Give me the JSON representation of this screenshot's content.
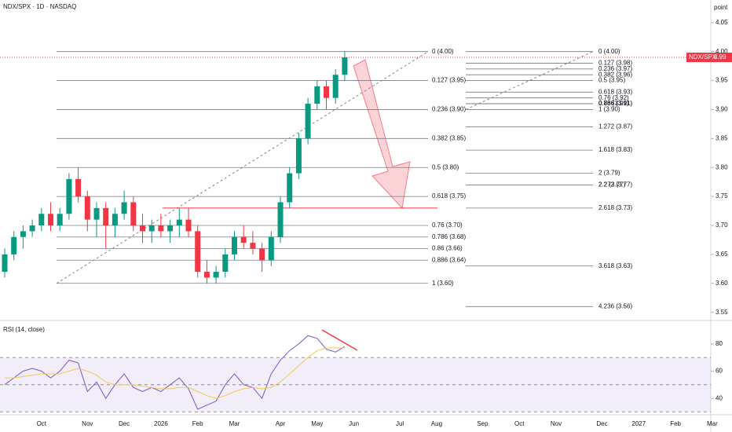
{
  "chart_data": [
    {
      "type": "candlestick",
      "title": "NDX/SPX · 1D · NASDAQ",
      "y_axis_label": "point",
      "categories": [
        null,
        null,
        null,
        null,
        "Oct",
        null,
        null,
        null,
        null,
        "Nov",
        null,
        null,
        null,
        "Dec",
        null,
        null,
        null,
        "2026",
        null,
        null,
        null,
        "Feb",
        null,
        null,
        null,
        "Mar",
        null,
        null,
        null,
        null,
        "Apr",
        null,
        null,
        null,
        "May",
        null,
        null,
        null,
        "Jun",
        null,
        null,
        null,
        null,
        "Jul",
        null,
        null,
        null,
        "Aug",
        null,
        null,
        null,
        null,
        "Sep",
        null,
        null,
        null,
        "Oct",
        null,
        null,
        null,
        "Nov",
        null,
        null,
        null,
        null,
        "Dec",
        null,
        null,
        null,
        "2027",
        null,
        null,
        null,
        "Feb",
        null,
        null,
        null,
        "Mar"
      ],
      "open": [
        3.62,
        3.65,
        3.68,
        3.69,
        3.7,
        3.72,
        3.7,
        3.72,
        3.78,
        3.75,
        3.71,
        3.73,
        3.7,
        3.72,
        3.74,
        3.7,
        3.69,
        3.7,
        3.69,
        3.7,
        3.71,
        3.69,
        3.62,
        3.61,
        3.62,
        3.65,
        3.68,
        3.67,
        3.66,
        3.64,
        3.68,
        3.74,
        3.79,
        3.85,
        3.91,
        3.94,
        3.92,
        3.96,
        null,
        null,
        null,
        null,
        null,
        null,
        null,
        null,
        null,
        null,
        null,
        null,
        null,
        null,
        null,
        null,
        null,
        null,
        null,
        null,
        null,
        null,
        null,
        null,
        null,
        null,
        null,
        null,
        null,
        null,
        null,
        null,
        null,
        null,
        null,
        null,
        null,
        null,
        null,
        null
      ],
      "high": [
        3.66,
        3.69,
        3.7,
        3.71,
        3.73,
        3.74,
        3.73,
        3.79,
        3.8,
        3.76,
        3.74,
        3.74,
        3.73,
        3.76,
        3.75,
        3.72,
        3.71,
        3.72,
        3.71,
        3.73,
        3.73,
        3.7,
        3.64,
        3.63,
        3.66,
        3.69,
        3.7,
        3.69,
        3.67,
        3.69,
        3.75,
        3.8,
        3.86,
        3.92,
        3.95,
        3.95,
        3.97,
        4.0,
        null,
        null,
        null,
        null,
        null,
        null,
        null,
        null,
        null,
        null,
        null,
        null,
        null,
        null,
        null,
        null,
        null,
        null,
        null,
        null,
        null,
        null,
        null,
        null,
        null,
        null,
        null,
        null,
        null,
        null,
        null,
        null,
        null,
        null,
        null,
        null,
        null,
        null,
        null,
        null
      ],
      "low": [
        3.61,
        3.64,
        3.66,
        3.68,
        3.69,
        3.69,
        3.69,
        3.71,
        3.74,
        3.69,
        3.68,
        3.66,
        3.68,
        3.71,
        3.69,
        3.67,
        3.67,
        3.68,
        3.67,
        3.68,
        3.68,
        3.61,
        3.6,
        3.6,
        3.61,
        3.64,
        3.66,
        3.65,
        3.62,
        3.63,
        3.67,
        3.73,
        3.78,
        3.84,
        3.9,
        3.9,
        3.91,
        3.95,
        null,
        null,
        null,
        null,
        null,
        null,
        null,
        null,
        null,
        null,
        null,
        null,
        null,
        null,
        null,
        null,
        null,
        null,
        null,
        null,
        null,
        null,
        null,
        null,
        null,
        null,
        null,
        null,
        null,
        null,
        null,
        null,
        null,
        null,
        null,
        null,
        null,
        null,
        null,
        null
      ],
      "close": [
        3.65,
        3.68,
        3.69,
        3.7,
        3.72,
        3.7,
        3.72,
        3.78,
        3.75,
        3.71,
        3.73,
        3.7,
        3.72,
        3.74,
        3.7,
        3.69,
        3.7,
        3.69,
        3.7,
        3.71,
        3.69,
        3.62,
        3.61,
        3.62,
        3.65,
        3.68,
        3.67,
        3.66,
        3.64,
        3.68,
        3.74,
        3.79,
        3.85,
        3.91,
        3.94,
        3.92,
        3.96,
        3.99,
        null,
        null,
        null,
        null,
        null,
        null,
        null,
        null,
        null,
        null,
        null,
        null,
        null,
        null,
        null,
        null,
        null,
        null,
        null,
        null,
        null,
        null,
        null,
        null,
        null,
        null,
        null,
        null,
        null,
        null,
        null,
        null,
        null,
        null,
        null,
        null,
        null,
        null,
        null,
        null
      ],
      "up_color": "#089981",
      "down_color": "#f23645",
      "ylim": [
        3.536,
        4.089
      ],
      "yticks": [
        3.55,
        {
          "value": 3.6,
          "label": "3.60"
        },
        3.65,
        {
          "value": 3.7,
          "label": "3.70"
        },
        3.75,
        {
          "value": 3.8,
          "label": "3.80"
        },
        3.85,
        {
          "value": 3.9,
          "label": "3.90"
        },
        3.95,
        {
          "value": 4,
          "label": "4.00"
        },
        4.05
      ],
      "grid": false,
      "price_tag_label": "NDX/SPX",
      "fib_retracement": {
        "labels": [
          "0 (4.00)",
          "0.127 (3.95)",
          "0.236 (3.90)",
          "0.382 (3.85)",
          "0.5 (3.80)",
          "0.618 (3.75)",
          "0.76 (3.70)",
          "0.786 (3.68)",
          "0.86 (3.66)",
          "0.886 (3.64)",
          "1 (3.60)"
        ],
        "values": [
          4.0,
          3.95,
          3.9,
          3.85,
          3.8,
          3.75,
          3.7,
          3.68,
          3.66,
          3.64,
          3.6
        ]
      },
      "fib_extension": {
        "labels": [
          "0 (4.00)",
          "0.127 (3.98)",
          "0.236 (3.97)",
          "0.382 (3.96)",
          "0.5 (3.95)",
          "0.618 (3.93)",
          "0.76 (3.92)",
          "0.786 (3.91)",
          "0.86 (3.91)",
          "0.886 (3.91)",
          "1 (3.90)",
          "1.272 (3.87)",
          "1.618 (3.83)",
          "2 (3.79)",
          "2.2 (3.77)",
          "2.272 (3.77)",
          "2.618 (3.73)",
          "3.618 (3.63)",
          "4.236 (3.56)"
        ],
        "values": [
          4.0,
          3.98,
          3.97,
          3.96,
          3.95,
          3.93,
          3.92,
          3.91,
          3.91,
          3.91,
          3.9,
          3.87,
          3.83,
          3.79,
          3.77,
          3.77,
          3.73,
          3.63,
          3.56
        ]
      },
      "hline": 3.73,
      "hline_color": "#f23645"
    },
    {
      "type": "line",
      "title": "RSI (14, close)",
      "series": [
        {
          "color": "#7e57c2",
          "values": [
            50,
            55,
            60,
            62,
            60,
            55,
            60,
            68,
            66,
            45,
            52,
            40,
            50,
            58,
            48,
            45,
            48,
            45,
            50,
            55,
            47,
            32,
            35,
            38,
            50,
            58,
            50,
            48,
            40,
            58,
            68,
            75,
            80,
            86,
            84,
            76,
            74,
            78
          ]
        },
        {
          "color": "#f2c94c",
          "values": [
            55,
            55,
            56,
            57,
            58,
            58,
            58,
            60,
            62,
            60,
            57,
            52,
            50,
            50,
            50,
            49,
            48,
            47,
            47,
            48,
            48,
            45,
            42,
            40,
            42,
            45,
            47,
            48,
            47,
            48,
            52,
            58,
            64,
            70,
            75,
            77,
            77,
            77
          ]
        }
      ],
      "ylim": [
        28,
        96
      ],
      "yticks": [
        40,
        60,
        80
      ],
      "levels": [
        70,
        50,
        30
      ],
      "band_color": "#7e57c2"
    }
  ]
}
